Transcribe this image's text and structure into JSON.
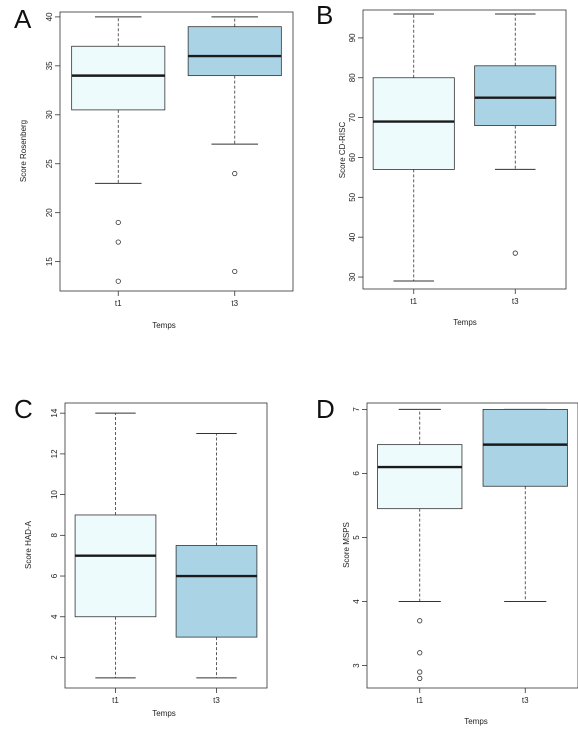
{
  "colors": {
    "t1_fill": "#eefbfd",
    "t3_fill": "#aad4e6",
    "stroke": "#333333"
  },
  "chart_data": [
    {
      "type": "box",
      "panel": "A",
      "categories": [
        "t1",
        "t3"
      ],
      "xlabel": "Temps",
      "ylabel": "Score Rosenberg",
      "ylim": [
        12,
        40.5
      ],
      "yticks": [
        15,
        20,
        25,
        30,
        35,
        40
      ],
      "boxes": [
        {
          "name": "t1",
          "whisker_low": 23,
          "q1": 30.5,
          "median": 34,
          "q3": 37,
          "whisker_high": 40,
          "outliers": [
            19,
            17,
            13
          ]
        },
        {
          "name": "t3",
          "whisker_low": 27,
          "q1": 34,
          "median": 36,
          "q3": 39,
          "whisker_high": 40,
          "outliers": [
            24,
            14
          ]
        }
      ]
    },
    {
      "type": "box",
      "panel": "B",
      "categories": [
        "t1",
        "t3"
      ],
      "xlabel": "Temps",
      "ylabel": "Score CD-RISC",
      "ylim": [
        27,
        97
      ],
      "yticks": [
        30,
        40,
        50,
        60,
        70,
        80,
        90
      ],
      "boxes": [
        {
          "name": "t1",
          "whisker_low": 29,
          "q1": 57,
          "median": 69,
          "q3": 80,
          "whisker_high": 96,
          "outliers": []
        },
        {
          "name": "t3",
          "whisker_low": 57,
          "q1": 68,
          "median": 75,
          "q3": 83,
          "whisker_high": 96,
          "outliers": [
            36
          ]
        }
      ]
    },
    {
      "type": "box",
      "panel": "C",
      "categories": [
        "t1",
        "t3"
      ],
      "xlabel": "Temps",
      "ylabel": "Score HAD-A",
      "ylim": [
        0.5,
        14.5
      ],
      "yticks": [
        2,
        4,
        6,
        8,
        10,
        12,
        14
      ],
      "boxes": [
        {
          "name": "t1",
          "whisker_low": 1,
          "q1": 4,
          "median": 7,
          "q3": 9,
          "whisker_high": 14,
          "outliers": []
        },
        {
          "name": "t3",
          "whisker_low": 1,
          "q1": 3,
          "median": 6,
          "q3": 7.5,
          "whisker_high": 13,
          "outliers": []
        }
      ]
    },
    {
      "type": "box",
      "panel": "D",
      "categories": [
        "t1",
        "t3"
      ],
      "xlabel": "Temps",
      "ylabel": "Score MSPS",
      "ylim": [
        2.65,
        7.1
      ],
      "yticks": [
        3,
        4,
        5,
        6,
        7
      ],
      "boxes": [
        {
          "name": "t1",
          "whisker_low": 4,
          "q1": 5.45,
          "median": 6.1,
          "q3": 6.45,
          "whisker_high": 7,
          "outliers": [
            3.7,
            3.2,
            2.9,
            2.8
          ]
        },
        {
          "name": "t3",
          "whisker_low": 4,
          "q1": 5.8,
          "median": 6.45,
          "q3": 7,
          "whisker_high": 7,
          "outliers": []
        }
      ]
    }
  ]
}
